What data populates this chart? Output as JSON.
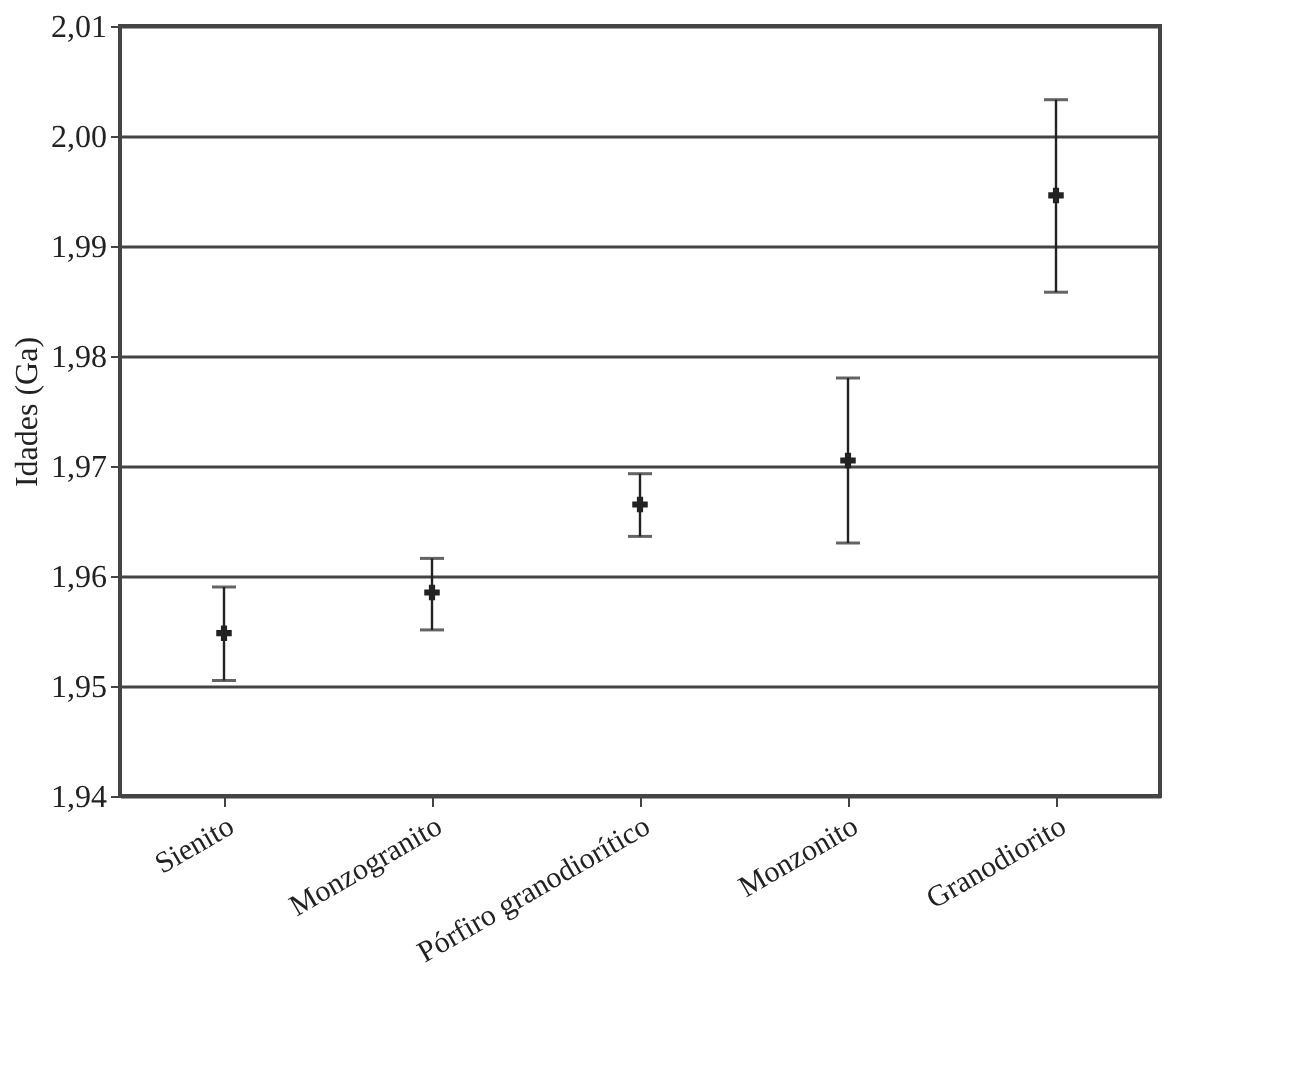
{
  "chart_data": {
    "type": "scatter",
    "ylabel": "Idades (Ga)",
    "categories": [
      "Sienito",
      "Monzogranito",
      "Pórfiro granodiorítico",
      "Monzonito",
      "Granodiorito"
    ],
    "series": [
      {
        "color": "#222222",
        "values": [
          1.9548,
          1.9585,
          1.9665,
          1.9705,
          1.9946
        ],
        "errors": [
          [
            1.9505,
            1.959
          ],
          [
            1.9551,
            1.9616
          ],
          [
            1.9636,
            1.9693
          ],
          [
            1.963,
            1.978
          ],
          [
            1.9858,
            2.0033
          ]
        ]
      }
    ],
    "ylim": [
      1.94,
      2.01
    ],
    "yticks": [
      {
        "value": 1.94,
        "label": "1,94"
      },
      {
        "value": 1.95,
        "label": "1,95"
      },
      {
        "value": 1.96,
        "label": "1,96"
      },
      {
        "value": 1.97,
        "label": "1,97"
      },
      {
        "value": 1.98,
        "label": "1,98"
      },
      {
        "value": 1.99,
        "label": "1,99"
      },
      {
        "value": 2.0,
        "label": "2,00"
      },
      {
        "value": 2.01,
        "label": "2,01"
      }
    ],
    "grid": "y",
    "marker": "cross"
  }
}
